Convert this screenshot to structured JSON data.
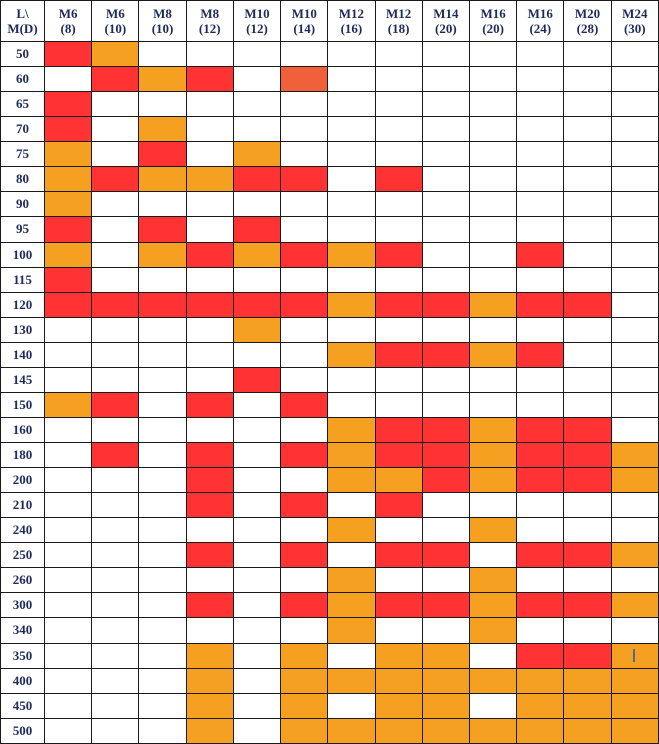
{
  "corner": {
    "line1": "L\\",
    "line2": "M(D)"
  },
  "columns": [
    {
      "size": "M6",
      "d": "(8)"
    },
    {
      "size": "M6",
      "d": "(10)"
    },
    {
      "size": "M8",
      "d": "(10)"
    },
    {
      "size": "M8",
      "d": "(12)"
    },
    {
      "size": "M10",
      "d": "(12)"
    },
    {
      "size": "M10",
      "d": "(14)"
    },
    {
      "size": "M12",
      "d": "(16)"
    },
    {
      "size": "M12",
      "d": "(18)"
    },
    {
      "size": "M14",
      "d": "(20)"
    },
    {
      "size": "M16",
      "d": "(20)"
    },
    {
      "size": "M16",
      "d": "(24)"
    },
    {
      "size": "M20",
      "d": "(28)"
    },
    {
      "size": "M24",
      "d": "(30)"
    }
  ],
  "colors": {
    "R": "#ff3333",
    "O": "#f5a020",
    "D": "#f0603a",
    "W": "#ffffff"
  },
  "rows": [
    {
      "length": "50",
      "cells": "RO..........."
    },
    {
      "length": "60",
      "cells": ".ROR.D......."
    },
    {
      "length": "65",
      "cells": "R............"
    },
    {
      "length": "70",
      "cells": "R.O.........."
    },
    {
      "length": "75",
      "cells": "O.R.O........"
    },
    {
      "length": "80",
      "cells": "OROORR.R....."
    },
    {
      "length": "90",
      "cells": "O............"
    },
    {
      "length": "95",
      "cells": "R.R.R........"
    },
    {
      "length": "100",
      "cells": "O.OROROR..R.."
    },
    {
      "length": "115",
      "cells": "R............"
    },
    {
      "length": "120",
      "cells": "RRRRRRORRORR."
    },
    {
      "length": "130",
      "cells": "....O........"
    },
    {
      "length": "140",
      "cells": "......ORROR.."
    },
    {
      "length": "145",
      "cells": "....R........"
    },
    {
      "length": "150",
      "cells": "OR.R.R......."
    },
    {
      "length": "160",
      "cells": "......ORRORR."
    },
    {
      "length": "180",
      "cells": ".R.R.RORRORRO"
    },
    {
      "length": "200",
      "cells": "...R..OORORRO"
    },
    {
      "length": "210",
      "cells": "...R.R.R....."
    },
    {
      "length": "240",
      "cells": "......O..O..."
    },
    {
      "length": "250",
      "cells": "...R.R.RR.RRO"
    },
    {
      "length": "260",
      "cells": "......O..O..."
    },
    {
      "length": "300",
      "cells": "...R.RORRORRO"
    },
    {
      "length": "340",
      "cells": "......O..O..."
    },
    {
      "length": "350",
      "cells": "...O.O.OO.RRO"
    },
    {
      "length": "400",
      "cells": "...O.OOOOOOOO"
    },
    {
      "length": "450",
      "cells": "...O.O.OO.OOO"
    },
    {
      "length": "500",
      "cells": "...O.OOOOOOOO"
    }
  ],
  "marker": {
    "row": 24,
    "col": 12,
    "icon": "thin-vertical-mark"
  }
}
